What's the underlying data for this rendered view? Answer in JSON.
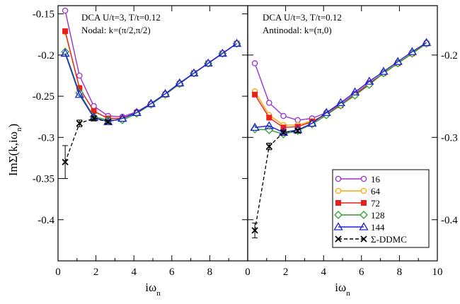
{
  "chart_data": {
    "type": "line",
    "ylabel_main": "ImΣ(k,iω",
    "ylabel_sub": "n",
    "ylabel_close": ")",
    "colors": {
      "16": "#9b30d0",
      "64": "#ffa500",
      "72": "#e8201c",
      "128": "#2e9e2e",
      "144": "#2020e0",
      "sigma": "#000000"
    },
    "legend": {
      "placement": "bottom-right of right panel",
      "entries": [
        {
          "key": "16",
          "label": "16",
          "marker": "circle-open"
        },
        {
          "key": "64",
          "label": "64",
          "marker": "circle-open"
        },
        {
          "key": "72",
          "label": "72",
          "marker": "square-filled"
        },
        {
          "key": "128",
          "label": "128",
          "marker": "diamond-open"
        },
        {
          "key": "144",
          "label": "144",
          "marker": "triangle-open"
        },
        {
          "key": "sigma",
          "label": "Σ-DDMC",
          "marker": "x",
          "dashed": true
        }
      ]
    },
    "panels": [
      {
        "id": "left",
        "annotation_line1": "DCA U/t=3, T/t=0.12",
        "annotation_line2": "Nodal: k=(π/2,π/2)",
        "xlabel_main": "iω",
        "xlabel_sub": "n",
        "xlim": [
          0,
          10
        ],
        "ylim": [
          -0.45,
          -0.14
        ],
        "xticks": [
          0,
          2,
          4,
          6,
          8
        ],
        "xtick_labels": [
          "0",
          "2",
          "4",
          "6",
          "8"
        ],
        "yticks": [
          -0.15,
          -0.2,
          -0.25,
          -0.3,
          -0.35,
          -0.4
        ],
        "ytick_labels": [
          "-0.15",
          "-0.2",
          "-0.25",
          "-0.3",
          "-0.35",
          "-0.4"
        ],
        "x": [
          0.377,
          1.131,
          1.885,
          2.639,
          3.393,
          4.147,
          4.901,
          5.655,
          6.409,
          7.163,
          7.917,
          8.671,
          9.425
        ],
        "series": [
          {
            "key": "16",
            "values": [
              -0.146,
              -0.225,
              -0.262,
              -0.274,
              -0.275,
              -0.269,
              -0.259,
              -0.247,
              -0.234,
              -0.222,
              -0.21,
              -0.198,
              -0.186
            ]
          },
          {
            "key": "64",
            "values": [
              -0.172,
              -0.24,
              -0.268,
              -0.277,
              -0.277,
              -0.27,
              -0.26,
              -0.248,
              -0.235,
              -0.222,
              -0.21,
              -0.198,
              -0.186
            ]
          },
          {
            "key": "72",
            "values": [
              -0.171,
              -0.24,
              -0.268,
              -0.277,
              -0.277,
              -0.27,
              -0.26,
              -0.248,
              -0.235,
              -0.222,
              -0.21,
              -0.198,
              -0.186
            ]
          },
          {
            "key": "128",
            "values": [
              -0.196,
              -0.246,
              -0.275,
              -0.279,
              -0.279,
              -0.271,
              -0.26,
              -0.248,
              -0.235,
              -0.222,
              -0.21,
              -0.198,
              -0.186
            ]
          },
          {
            "key": "144",
            "values": [
              -0.198,
              -0.248,
              -0.276,
              -0.281,
              -0.277,
              -0.27,
              -0.259,
              -0.247,
              -0.234,
              -0.222,
              -0.21,
              -0.198,
              -0.186
            ]
          }
        ],
        "ddmc": {
          "x": [
            0.377,
            1.131,
            1.885,
            2.639
          ],
          "values": [
            -0.33,
            -0.283,
            -0.277,
            -0.281
          ],
          "errors": [
            0.02,
            0.004,
            0.003,
            0.002
          ]
        }
      },
      {
        "id": "right",
        "annotation_line1": "DCA U/t=3, T/t=0.12",
        "annotation_line2": "Antinodal: k=(π,0)",
        "xlabel_main": "iω",
        "xlabel_sub": "n",
        "xlim": [
          0,
          10
        ],
        "ylim": [
          -0.45,
          -0.14
        ],
        "xticks": [
          0,
          2,
          4,
          6,
          8,
          10
        ],
        "xtick_labels": [
          "0",
          "2",
          "4",
          "6",
          "8",
          "10"
        ],
        "yticks": [
          -0.2,
          -0.3,
          -0.4
        ],
        "ytick_labels": [
          "-0.2",
          "-0.3",
          "-0.4"
        ],
        "x": [
          0.377,
          1.131,
          1.885,
          2.639,
          3.393,
          4.147,
          4.901,
          5.655,
          6.409,
          7.163,
          7.917,
          8.671,
          9.425
        ],
        "series": [
          {
            "key": "16",
            "values": [
              -0.21,
              -0.258,
              -0.274,
              -0.279,
              -0.277,
              -0.27,
              -0.26,
              -0.247,
              -0.234,
              -0.222,
              -0.21,
              -0.198,
              -0.186
            ]
          },
          {
            "key": "64",
            "values": [
              -0.244,
              -0.273,
              -0.285,
              -0.285,
              -0.28,
              -0.272,
              -0.261,
              -0.248,
              -0.235,
              -0.222,
              -0.21,
              -0.198,
              -0.186
            ]
          },
          {
            "key": "72",
            "values": [
              -0.248,
              -0.276,
              -0.288,
              -0.287,
              -0.281,
              -0.272,
              -0.261,
              -0.248,
              -0.235,
              -0.222,
              -0.21,
              -0.198,
              -0.186
            ]
          },
          {
            "key": "128",
            "values": [
              -0.29,
              -0.291,
              -0.296,
              -0.292,
              -0.284,
              -0.273,
              -0.261,
              -0.249,
              -0.236,
              -0.222,
              -0.21,
              -0.198,
              -0.186
            ]
          },
          {
            "key": "144",
            "values": [
              -0.288,
              -0.286,
              -0.294,
              -0.291,
              -0.283,
              -0.27,
              -0.258,
              -0.245,
              -0.232,
              -0.22,
              -0.208,
              -0.196,
              -0.185
            ]
          }
        ],
        "ddmc": {
          "x": [
            0.377,
            1.131,
            1.885,
            2.639
          ],
          "values": [
            -0.413,
            -0.311,
            -0.294,
            -0.292
          ],
          "errors": [
            0.009,
            0.004,
            0.002,
            0.002
          ]
        }
      }
    ]
  }
}
